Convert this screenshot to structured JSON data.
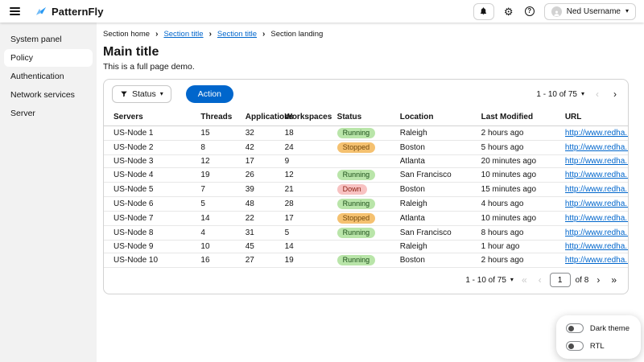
{
  "masthead": {
    "brand": "PatternFly",
    "user_name": "Ned Username"
  },
  "sidebar": {
    "items": [
      {
        "label": "System panel",
        "selected": false
      },
      {
        "label": "Policy",
        "selected": true
      },
      {
        "label": "Authentication",
        "selected": false
      },
      {
        "label": "Network services",
        "selected": false
      },
      {
        "label": "Server",
        "selected": false
      }
    ]
  },
  "breadcrumb": {
    "items": [
      {
        "label": "Section home",
        "link": false
      },
      {
        "label": "Section title",
        "link": true
      },
      {
        "label": "Section title",
        "link": true
      },
      {
        "label": "Section landing",
        "link": false
      }
    ]
  },
  "page": {
    "title": "Main title",
    "subtitle": "This is a full page demo."
  },
  "toolbar": {
    "filter_label": "Status",
    "action_label": "Action"
  },
  "pagination": {
    "range_label": "1 - 10 of 75",
    "bottom": {
      "page_value": "1",
      "of_label": "of 8"
    }
  },
  "table": {
    "columns": [
      "Servers",
      "Threads",
      "Applications",
      "Workspaces",
      "Status",
      "Location",
      "Last Modified",
      "URL"
    ],
    "rows": [
      {
        "server": "US-Node 1",
        "threads": "15",
        "applications": "32",
        "workspaces": "18",
        "status": "Running",
        "location": "Raleigh",
        "modified": "2 hours ago",
        "url": "http://www.redha..."
      },
      {
        "server": "US-Node 2",
        "threads": "8",
        "applications": "42",
        "workspaces": "24",
        "status": "Stopped",
        "location": "Boston",
        "modified": "5 hours ago",
        "url": "http://www.redha..."
      },
      {
        "server": "US-Node 3",
        "threads": "12",
        "applications": "17",
        "workspaces": "9",
        "status": "",
        "location": "Atlanta",
        "modified": "20 minutes ago",
        "url": "http://www.redha..."
      },
      {
        "server": "US-Node 4",
        "threads": "19",
        "applications": "26",
        "workspaces": "12",
        "status": "Running",
        "location": "San Francisco",
        "modified": "10 minutes ago",
        "url": "http://www.redha..."
      },
      {
        "server": "US-Node 5",
        "threads": "7",
        "applications": "39",
        "workspaces": "21",
        "status": "Down",
        "location": "Boston",
        "modified": "15 minutes ago",
        "url": "http://www.redha..."
      },
      {
        "server": "US-Node 6",
        "threads": "5",
        "applications": "48",
        "workspaces": "28",
        "status": "Running",
        "location": "Raleigh",
        "modified": "4 hours ago",
        "url": "http://www.redha..."
      },
      {
        "server": "US-Node 7",
        "threads": "14",
        "applications": "22",
        "workspaces": "17",
        "status": "Stopped",
        "location": "Atlanta",
        "modified": "10 minutes ago",
        "url": "http://www.redha..."
      },
      {
        "server": "US-Node 8",
        "threads": "4",
        "applications": "31",
        "workspaces": "5",
        "status": "Running",
        "location": "San Francisco",
        "modified": "8 hours ago",
        "url": "http://www.redha..."
      },
      {
        "server": "US-Node 9",
        "threads": "10",
        "applications": "45",
        "workspaces": "14",
        "status": "",
        "location": "Raleigh",
        "modified": "1 hour ago",
        "url": "http://www.redha..."
      },
      {
        "server": "US-Node 10",
        "threads": "16",
        "applications": "27",
        "workspaces": "19",
        "status": "Running",
        "location": "Boston",
        "modified": "2 hours ago",
        "url": "http://www.redha..."
      }
    ]
  },
  "theme_panel": {
    "items": [
      {
        "label": "Dark theme",
        "on": false
      },
      {
        "label": "RTL",
        "on": false
      }
    ]
  },
  "colors": {
    "primary": "#0066cc",
    "link": "#0066cc",
    "sidebar_bg": "#f2f2f2",
    "logo_dark_blue": "#2b9af3",
    "logo_light_blue": "#73bcf7",
    "status": {
      "Running": {
        "bg": "#b9e5a9",
        "text": "#1d4f1a"
      },
      "Stopped": {
        "bg": "#f5c170",
        "text": "#73480b"
      },
      "Down": {
        "bg": "#f8c2c2",
        "text": "#8a1f11"
      }
    }
  },
  "glyphs": {
    "caret_down": "▾",
    "breadcrumb_separator": "›",
    "angle_left": "‹",
    "angle_right": "›",
    "angle_double_left": "«",
    "angle_double_right": "»",
    "gear": "⚙",
    "help": "?"
  }
}
